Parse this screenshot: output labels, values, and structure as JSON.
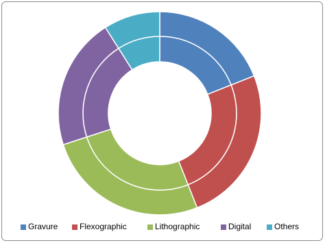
{
  "chart_data": {
    "type": "doughnut",
    "categories": [
      "Gravure",
      "Flexographic",
      "Lithographic",
      "Digital",
      "Others"
    ],
    "colors": [
      "#4f81bd",
      "#c0504d",
      "#9bbb59",
      "#8064a2",
      "#4bacc6"
    ],
    "series": [
      {
        "values": [
          19,
          25,
          26,
          21,
          9
        ]
      },
      {
        "values": [
          19,
          25,
          26,
          21,
          9
        ]
      }
    ],
    "legend": "bottom"
  }
}
